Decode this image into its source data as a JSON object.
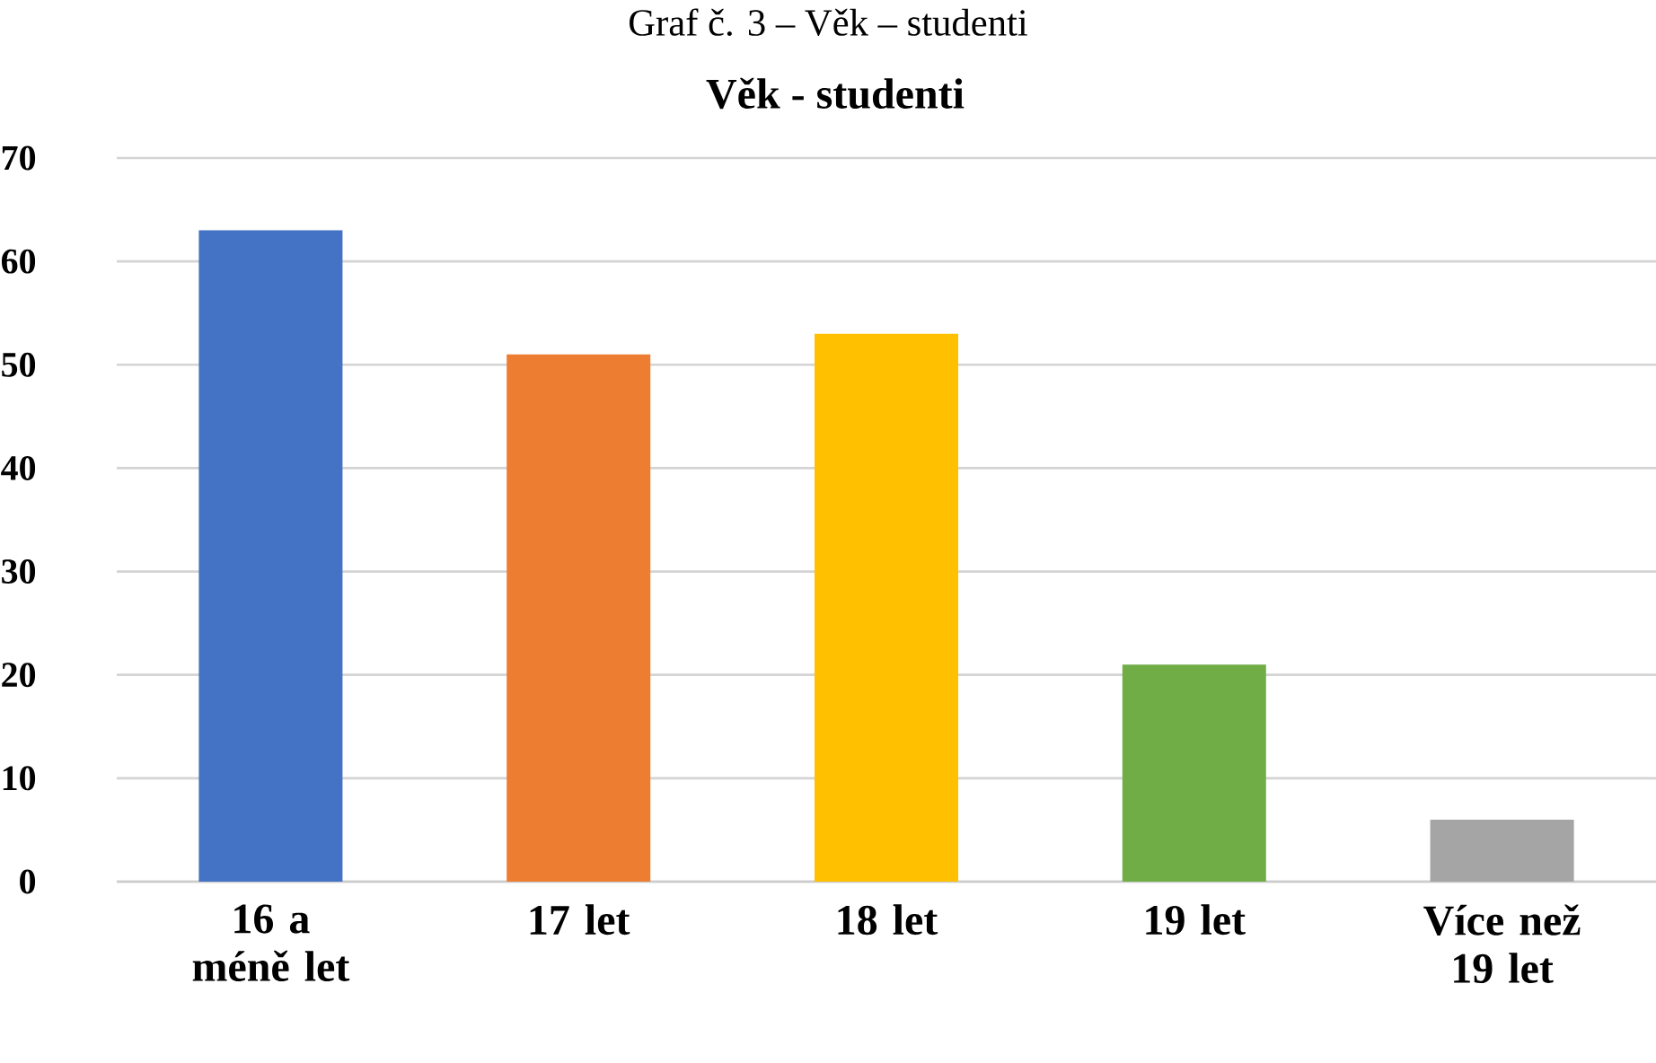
{
  "chart_data": {
    "type": "bar",
    "title": "Věk - studenti",
    "annotations": [
      "Graf č. 3 – Věk – studenti"
    ],
    "categories": [
      "16 a méně let",
      "17 let",
      "18 let",
      "19 let",
      "Více než 19 let"
    ],
    "values": [
      63,
      51,
      53,
      21,
      6
    ],
    "colors": [
      "#4472c4",
      "#ed7d31",
      "#ffc000",
      "#70ad47",
      "#a5a5a5"
    ],
    "ylim": [
      0,
      70
    ],
    "yticks": [
      0,
      10,
      20,
      30,
      40,
      50,
      60,
      70
    ],
    "grid": "y"
  }
}
